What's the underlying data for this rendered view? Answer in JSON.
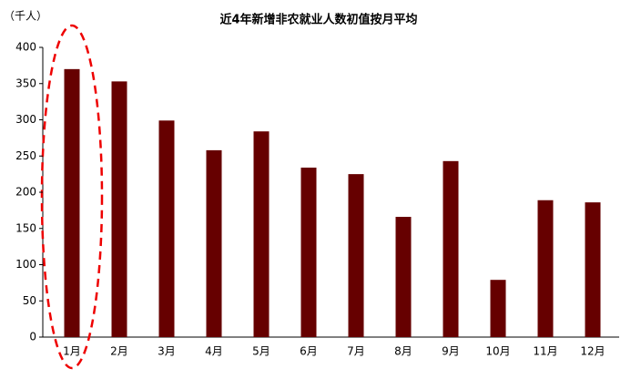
{
  "chart_data": {
    "type": "bar",
    "title": "近4年新增非农就业人数初值按月平均",
    "y_label": "（千人）",
    "categories": [
      "1月",
      "2月",
      "3月",
      "4月",
      "5月",
      "6月",
      "7月",
      "8月",
      "9月",
      "10月",
      "11月",
      "12月"
    ],
    "values": [
      370,
      353,
      299,
      258,
      284,
      234,
      225,
      166,
      243,
      79,
      189,
      186
    ],
    "color": "#660000",
    "ylim": [
      0,
      400
    ],
    "yticks": [
      0,
      50,
      100,
      150,
      200,
      250,
      300,
      350,
      400
    ],
    "grid": false
  }
}
